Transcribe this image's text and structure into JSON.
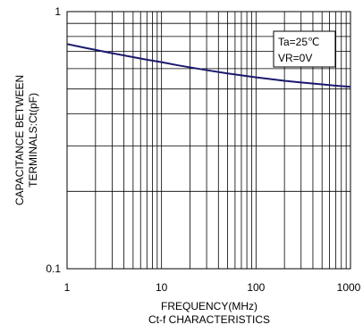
{
  "chart_data": {
    "type": "line",
    "xscale": "log",
    "yscale": "log",
    "xlim": [
      1,
      1000
    ],
    "ylim": [
      0.1,
      1
    ],
    "x_ticks": [
      "1",
      "10",
      "100",
      "1000"
    ],
    "y_ticks": [
      "0.1",
      "1"
    ],
    "xlabel": "FREQUENCY(MHz)",
    "subtitle": "Ct-f CHARACTERISTICS",
    "ylabel_lines": [
      "CAPACITANCE BETWEEN",
      "TERMINALS:Ct(pF)"
    ],
    "annotation_lines": [
      "Ta=25℃",
      "VR=0V"
    ],
    "grid": true,
    "line_color": "#1a1a6e",
    "series": [
      {
        "x": [
          1,
          1.5,
          2,
          3,
          5,
          7,
          10,
          15,
          20,
          30,
          50,
          70,
          100,
          150,
          200,
          300,
          500,
          700,
          1000
        ],
        "y": [
          0.748,
          0.725,
          0.71,
          0.689,
          0.665,
          0.65,
          0.636,
          0.618,
          0.607,
          0.592,
          0.575,
          0.565,
          0.555,
          0.545,
          0.538,
          0.53,
          0.521,
          0.515,
          0.51
        ]
      }
    ]
  }
}
